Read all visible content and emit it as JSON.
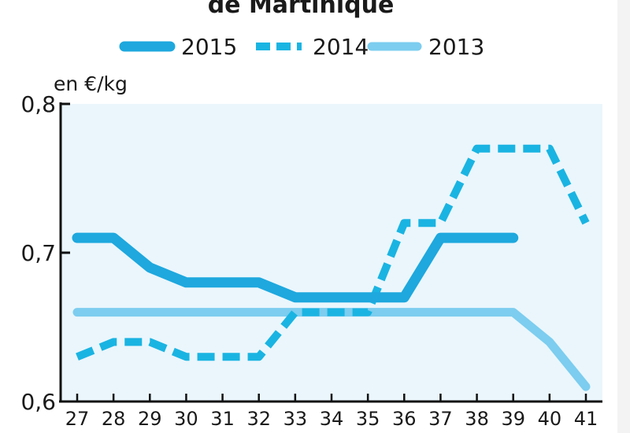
{
  "chart_data": {
    "type": "line",
    "title": "de Martinique",
    "ylabel": "en €/kg",
    "xlabel": "",
    "x": [
      27,
      28,
      29,
      30,
      31,
      32,
      33,
      34,
      35,
      36,
      37,
      38,
      39,
      40,
      41
    ],
    "ylim": [
      0.6,
      0.8
    ],
    "yticks": [
      "0,6",
      "0,7",
      "0,8"
    ],
    "legend_position": "top",
    "grid": false,
    "series": [
      {
        "name": "2015",
        "style": "solid-thick",
        "color": "#1ea8de",
        "values": [
          0.71,
          0.71,
          0.69,
          0.68,
          0.68,
          0.68,
          0.67,
          0.67,
          0.67,
          0.67,
          0.71,
          0.71,
          0.71,
          null,
          null
        ]
      },
      {
        "name": "2014",
        "style": "dashed",
        "color": "#1ab4e2",
        "values": [
          0.63,
          0.64,
          0.64,
          0.63,
          0.63,
          0.63,
          0.66,
          0.66,
          0.66,
          0.72,
          0.72,
          0.77,
          0.77,
          0.77,
          0.72
        ]
      },
      {
        "name": "2013",
        "style": "solid-light",
        "color": "#7ccdef",
        "values": [
          0.66,
          0.66,
          0.66,
          0.66,
          0.66,
          0.66,
          0.66,
          0.66,
          0.66,
          0.66,
          0.66,
          0.66,
          0.66,
          0.64,
          0.61
        ]
      }
    ],
    "colors": {
      "plot_background": "#eaf6fc",
      "axis": "#111111"
    }
  }
}
